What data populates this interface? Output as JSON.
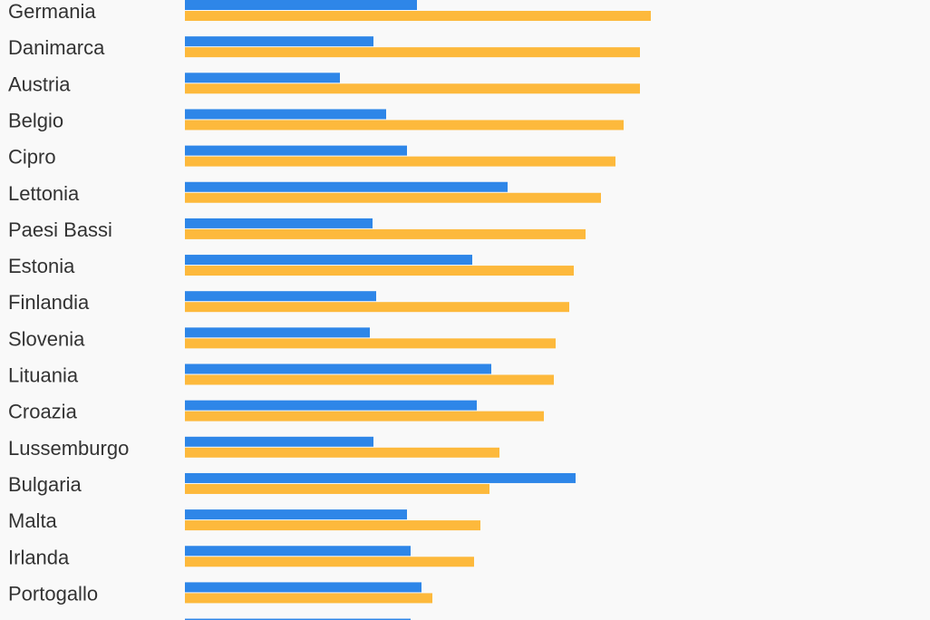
{
  "chart_data": {
    "type": "bar",
    "orientation": "horizontal",
    "categories": [
      "Germania",
      "Danimarca",
      "Austria",
      "Belgio",
      "Cipro",
      "Lettonia",
      "Paesi Bassi",
      "Estonia",
      "Finlandia",
      "Slovenia",
      "Lituania",
      "Croazia",
      "Lussemburgo",
      "Bulgaria",
      "Malta",
      "Irlanda",
      "Portogallo",
      ""
    ],
    "series": [
      {
        "color": "#2e86e8",
        "values": [
          256,
          208,
          171,
          222,
          245,
          356,
          207,
          317,
          211,
          204,
          338,
          322,
          208,
          431,
          245,
          249,
          261,
          249
        ]
      },
      {
        "color": "#fdb93c",
        "values": [
          514,
          502,
          502,
          484,
          475,
          459,
          442,
          429,
          424,
          409,
          407,
          396,
          347,
          336,
          326,
          319,
          273,
          null
        ]
      }
    ],
    "xlim": [
      0,
      820
    ],
    "grid": false,
    "legend": "none"
  }
}
